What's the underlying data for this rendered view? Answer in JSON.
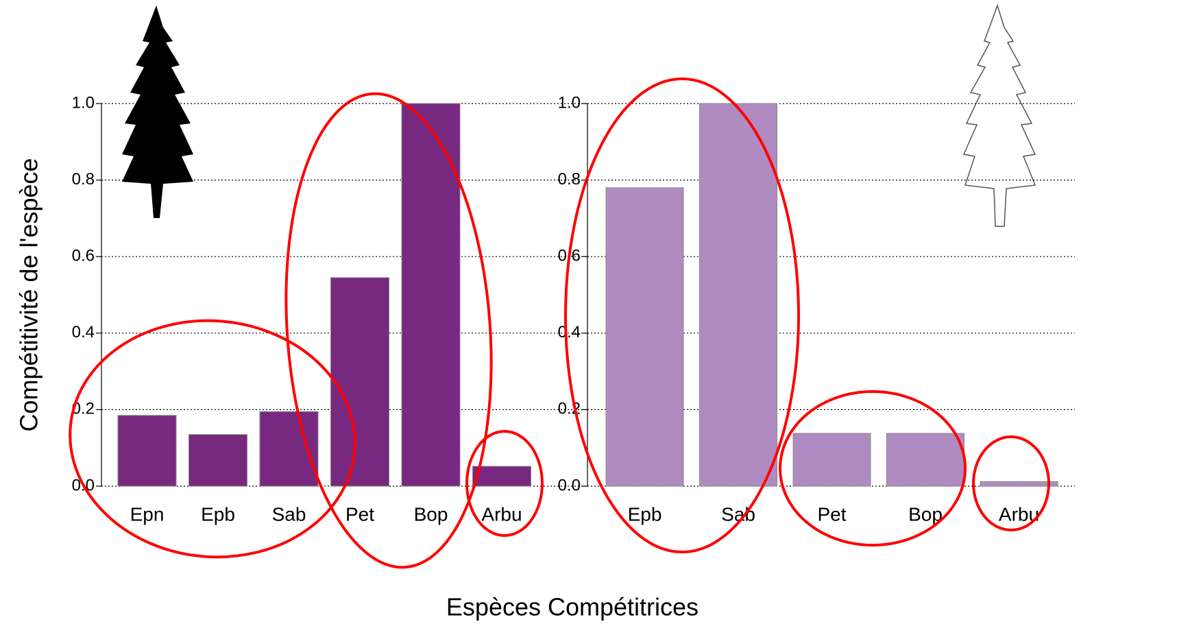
{
  "chart_data": [
    {
      "type": "bar",
      "ylabel": "Compétitivité de l'espèce",
      "xlabel": "Espèces Compétitrices",
      "categories": [
        "Epn",
        "Epb",
        "Sab",
        "Pet",
        "Bop",
        "Arbu"
      ],
      "values": [
        0.185,
        0.135,
        0.195,
        0.545,
        1.0,
        0.052
      ],
      "color": "#77297f",
      "ylim": [
        0,
        1
      ],
      "yticks": [
        {
          "value": 0,
          "label": "0.0"
        },
        0.2,
        0.4,
        0.6,
        0.8,
        {
          "value": 1,
          "label": "1.0"
        }
      ],
      "grid": true
    },
    {
      "type": "bar",
      "categories": [
        "Epb",
        "Sab",
        "Pet",
        "Bop",
        "Arbu"
      ],
      "values": [
        0.78,
        1.0,
        0.138,
        0.138,
        0.012
      ],
      "color": "#b08bc1",
      "ylim": [
        0,
        1
      ],
      "yticks": [
        {
          "value": 0,
          "label": "0.0"
        },
        0.2,
        0.4,
        0.6,
        0.8,
        {
          "value": 1,
          "label": "1.0"
        }
      ],
      "grid": true
    }
  ]
}
